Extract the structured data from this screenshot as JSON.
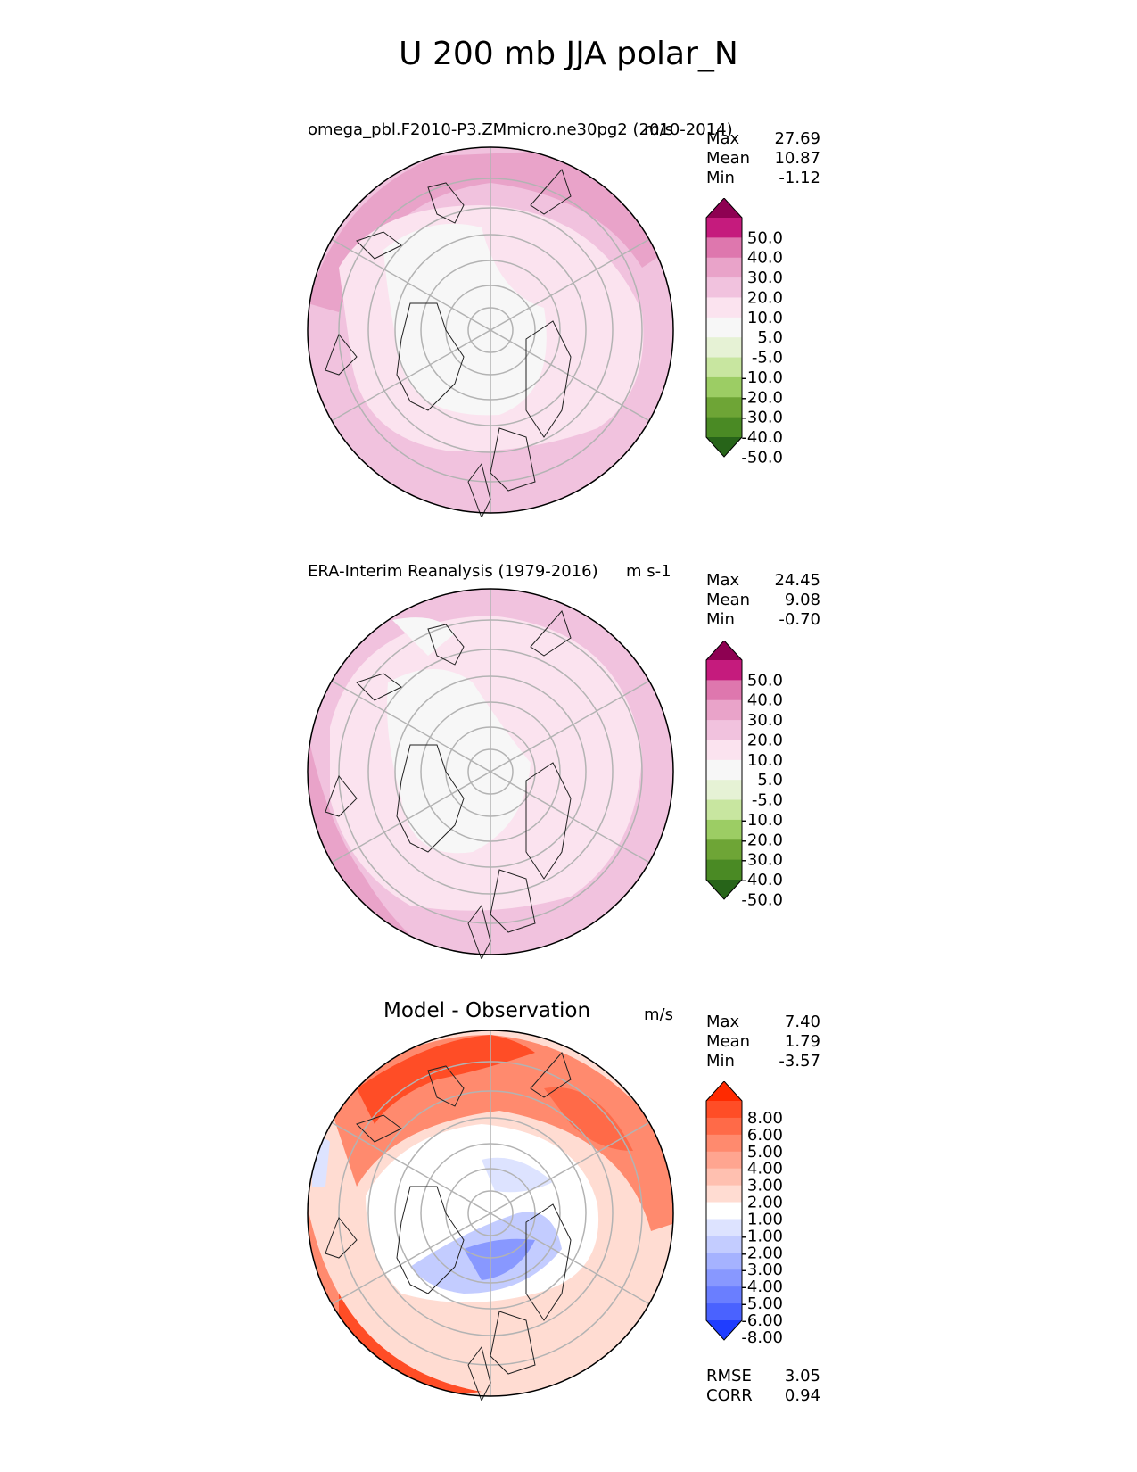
{
  "title": "U 200 mb JJA polar_N",
  "panels": [
    {
      "left_title": "omega_pbl.F2010-P3.ZMmicro.ne30pg2 (2010-2014)",
      "units": "m/s",
      "stats": {
        "max_label": "Max",
        "max": "27.69",
        "mean_label": "Mean",
        "mean": "10.87",
        "min_label": "Min",
        "min": "-1.12"
      },
      "colorbar": {
        "levels": [
          "50.0",
          "40.0",
          "30.0",
          "20.0",
          "10.0",
          "5.0",
          "-5.0",
          "-10.0",
          "-20.0",
          "-30.0",
          "-40.0",
          "-50.0"
        ],
        "colors": [
          "#8e0152",
          "#c51b7d",
          "#de77ae",
          "#e9a3c9",
          "#f1c2de",
          "#fbe3ef",
          "#f7f7f7",
          "#e6f2d5",
          "#c8e6a0",
          "#9ccd64",
          "#6ea536",
          "#4a8a24",
          "#276419"
        ]
      }
    },
    {
      "left_title": "ERA-Interim Reanalysis (1979-2016)",
      "units": "m s-1",
      "stats": {
        "max_label": "Max",
        "max": "24.45",
        "mean_label": "Mean",
        "mean": "9.08",
        "min_label": "Min",
        "min": "-0.70"
      },
      "colorbar": {
        "levels": [
          "50.0",
          "40.0",
          "30.0",
          "20.0",
          "10.0",
          "5.0",
          "-5.0",
          "-10.0",
          "-20.0",
          "-30.0",
          "-40.0",
          "-50.0"
        ],
        "colors": [
          "#8e0152",
          "#c51b7d",
          "#de77ae",
          "#e9a3c9",
          "#f1c2de",
          "#fbe3ef",
          "#f7f7f7",
          "#e6f2d5",
          "#c8e6a0",
          "#9ccd64",
          "#6ea536",
          "#4a8a24",
          "#276419"
        ]
      }
    },
    {
      "center_title": "Model - Observation",
      "units": "m/s",
      "stats": {
        "max_label": "Max",
        "max": "7.40",
        "mean_label": "Mean",
        "mean": "1.79",
        "min_label": "Min",
        "min": "-3.57"
      },
      "colorbar": {
        "levels": [
          "8.00",
          "6.00",
          "5.00",
          "4.00",
          "3.00",
          "2.00",
          "1.00",
          "-1.00",
          "-2.00",
          "-3.00",
          "-4.00",
          "-5.00",
          "-6.00",
          "-8.00"
        ],
        "colors": [
          "#ff2a00",
          "#ff4d26",
          "#ff6a48",
          "#ff8a6e",
          "#ffa590",
          "#ffc0b0",
          "#ffdcd2",
          "#ffffff",
          "#dde3ff",
          "#c3ccff",
          "#a5b2ff",
          "#8898ff",
          "#6a7eff",
          "#4a62ff",
          "#1f3dff"
        ]
      },
      "metrics": {
        "rmse_label": "RMSE",
        "rmse": "3.05",
        "corr_label": "CORR",
        "corr": "0.94"
      }
    }
  ],
  "chart_data": [
    {
      "type": "heatmap",
      "projection": "north polar stereographic",
      "title": "omega_pbl.F2010-P3.ZMmicro.ne30pg2 (2010-2014)",
      "variable": "U 200 mb JJA",
      "units": "m/s",
      "stats": {
        "max": 27.69,
        "mean": 10.87,
        "min": -1.12
      },
      "contour_levels": [
        -50,
        -40,
        -30,
        -20,
        -10,
        -5,
        5,
        10,
        20,
        30,
        40,
        50
      ],
      "extend": "both"
    },
    {
      "type": "heatmap",
      "projection": "north polar stereographic",
      "title": "ERA-Interim Reanalysis (1979-2016)",
      "variable": "U 200 mb JJA",
      "units": "m s-1",
      "stats": {
        "max": 24.45,
        "mean": 9.08,
        "min": -0.7
      },
      "contour_levels": [
        -50,
        -40,
        -30,
        -20,
        -10,
        -5,
        5,
        10,
        20,
        30,
        40,
        50
      ],
      "extend": "both"
    },
    {
      "type": "heatmap",
      "projection": "north polar stereographic",
      "title": "Model - Observation",
      "units": "m/s",
      "stats": {
        "max": 7.4,
        "mean": 1.79,
        "min": -3.57,
        "rmse": 3.05,
        "corr": 0.94
      },
      "contour_levels": [
        -8,
        -6,
        -5,
        -4,
        -3,
        -2,
        -1,
        1,
        2,
        3,
        4,
        5,
        6,
        8
      ],
      "extend": "both"
    }
  ]
}
